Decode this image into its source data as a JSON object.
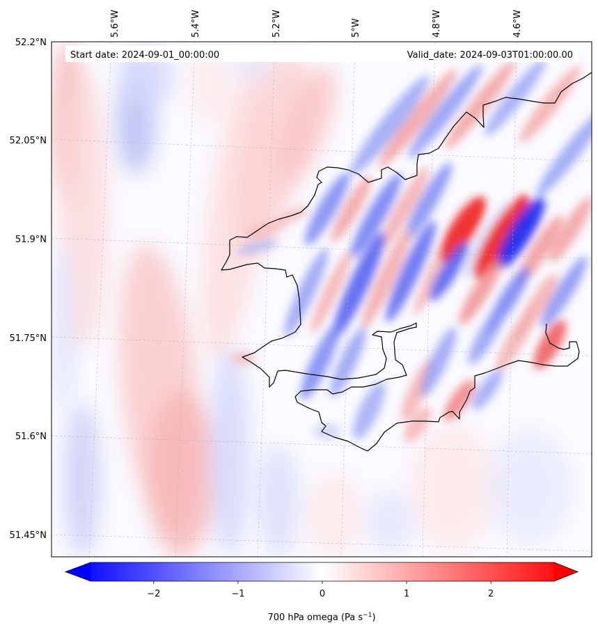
{
  "header": {
    "start_date": "Start date: 2024-09-01_00:00:00",
    "valid_date": "Valid_date: 2024-09-03T01:00:00.00"
  },
  "lon_labels": [
    "5.6°W",
    "5.4°W",
    "5.2°W",
    "5°W",
    "4.8°W",
    "4.6°W"
  ],
  "lat_labels": [
    "52.2°N",
    "52.05°N",
    "51.9°N",
    "51.75°N",
    "51.6°N",
    "51.45°N"
  ],
  "colorbar": {
    "label_main": "700 hPa omega (Pa s",
    "label_exp": "−1",
    "label_close": ")",
    "ticks": [
      "−2",
      "−1",
      "0",
      "1",
      "2"
    ],
    "min": -2.75,
    "max": 2.75,
    "tick_values": [
      -2,
      -1,
      0,
      1,
      2
    ],
    "extend": "both",
    "colormap": "bwr",
    "color_low": "#0000ff",
    "color_mid": "#ffffff",
    "color_high": "#ff0000"
  },
  "map": {
    "coastline_color": "#000000",
    "gridline_color": "#b0b0b0"
  }
}
